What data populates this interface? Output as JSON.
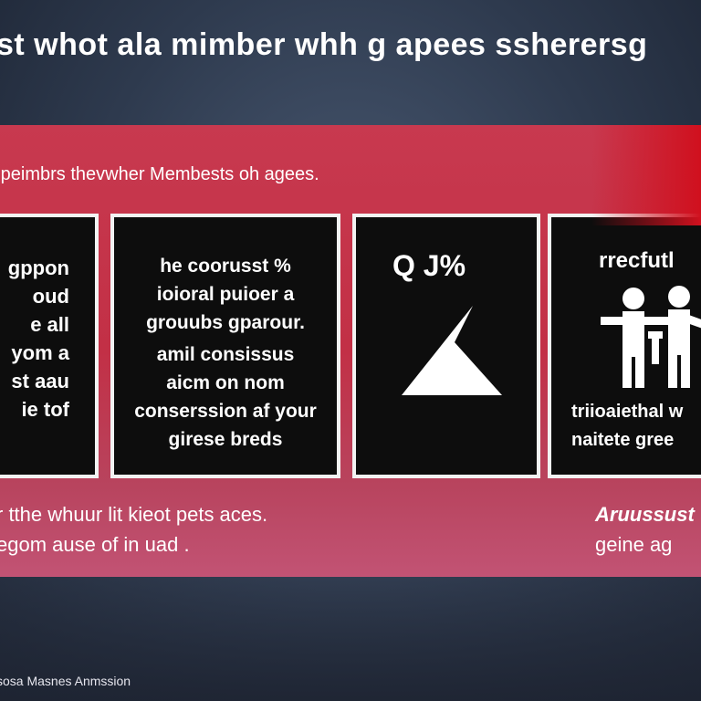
{
  "headline": "st whot ala mimber whh g apees ssherersg",
  "band": {
    "subtitle": "·peimbrs thevwher Membests oh agees."
  },
  "cards": [
    {
      "lines": [
        "gppon",
        "oud",
        "e all",
        "yom a",
        "st aau",
        "ie tof"
      ]
    },
    {
      "top_lines": [
        "he coorusst %",
        "ioioral puioer a",
        "grouubs gparour."
      ],
      "bottom_lines": [
        "amil consissus",
        "aicm on nom",
        "conserssion af your",
        "girese breds"
      ]
    },
    {
      "stat": "Q J%",
      "icon": "triangle-arrow-icon"
    },
    {
      "title": "rrecfutl",
      "icon": "people-group-icon",
      "lines": [
        "triioaiethal w",
        "naitete gree"
      ]
    }
  ],
  "captions": {
    "left": [
      "r tthe whuur lit kieot pets aces.",
      "egom ause of in uad ."
    ],
    "right_bold": "Aruussust",
    "right_line": "geine ag"
  },
  "footer": "sosa Masnes Anmssion"
}
